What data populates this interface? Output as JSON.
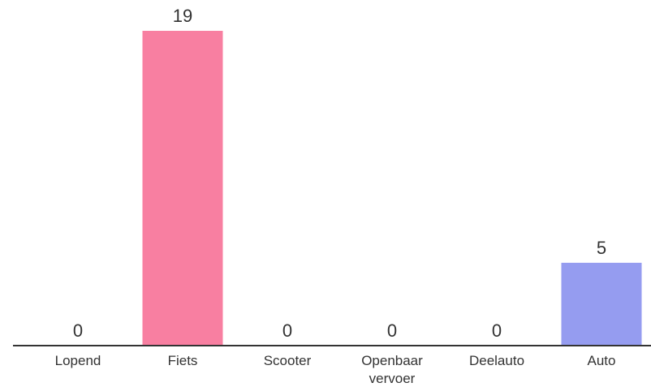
{
  "chart_data": {
    "type": "bar",
    "categories": [
      "Lopend",
      "Fiets",
      "Scooter",
      "Openbaar vervoer",
      "Deelauto",
      "Auto"
    ],
    "category_lines": [
      [
        "Lopend"
      ],
      [
        "Fiets"
      ],
      [
        "Scooter"
      ],
      [
        "Openbaar",
        "vervoer"
      ],
      [
        "Deelauto"
      ],
      [
        "Auto"
      ]
    ],
    "values": [
      0,
      19,
      0,
      0,
      0,
      5
    ],
    "data_labels": [
      "0",
      "19",
      "0",
      "0",
      "0",
      "5"
    ],
    "colors": [
      "#f87fa1",
      "#f87fa1",
      "#f87fa1",
      "#f87fa1",
      "#959cf0",
      "#959cf0"
    ],
    "ylim": [
      0,
      19
    ],
    "title": "",
    "xlabel": "",
    "ylabel": "",
    "grid": false,
    "legend": "none"
  }
}
